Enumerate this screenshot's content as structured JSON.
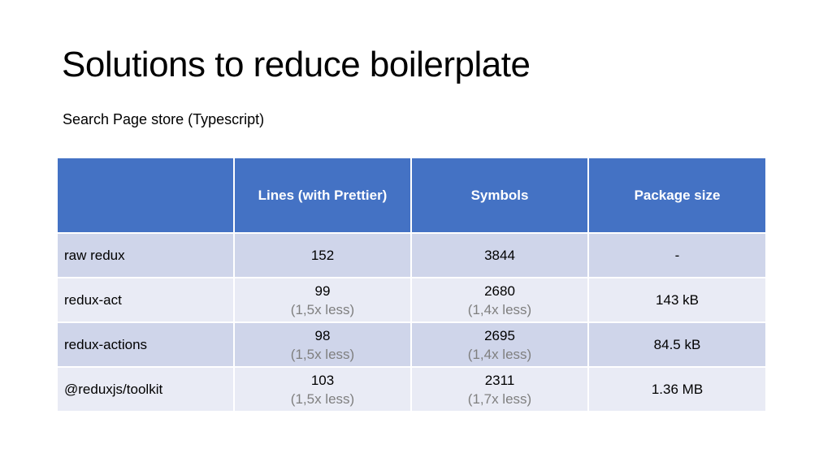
{
  "slide": {
    "title": "Solutions to reduce boilerplate",
    "subtitle": "Search Page store (Typescript)"
  },
  "table": {
    "columns": [
      "",
      "Lines (with Prettier)",
      "Symbols",
      "Package size"
    ],
    "rows": [
      {
        "label": "raw redux",
        "lines": "152",
        "lines_note": "",
        "symbols": "3844",
        "symbols_note": "",
        "size": "-"
      },
      {
        "label": "redux-act",
        "lines": "99",
        "lines_note": "(1,5x less)",
        "symbols": "2680",
        "symbols_note": "(1,4x less)",
        "size": "143 kB"
      },
      {
        "label": "redux-actions",
        "lines": "98",
        "lines_note": "(1,5x less)",
        "symbols": "2695",
        "symbols_note": "(1,4x less)",
        "size": "84.5 kB"
      },
      {
        "label": "@reduxjs/toolkit",
        "lines": "103",
        "lines_note": "(1,5x less)",
        "symbols": "2311",
        "symbols_note": "(1,7x less)",
        "size": "1.36 MB"
      }
    ]
  },
  "colors": {
    "header_bg": "#4472c4",
    "row_odd_bg": "#cfd5ea",
    "row_even_bg": "#e9ebf5",
    "note_text": "#7f7f7f"
  }
}
